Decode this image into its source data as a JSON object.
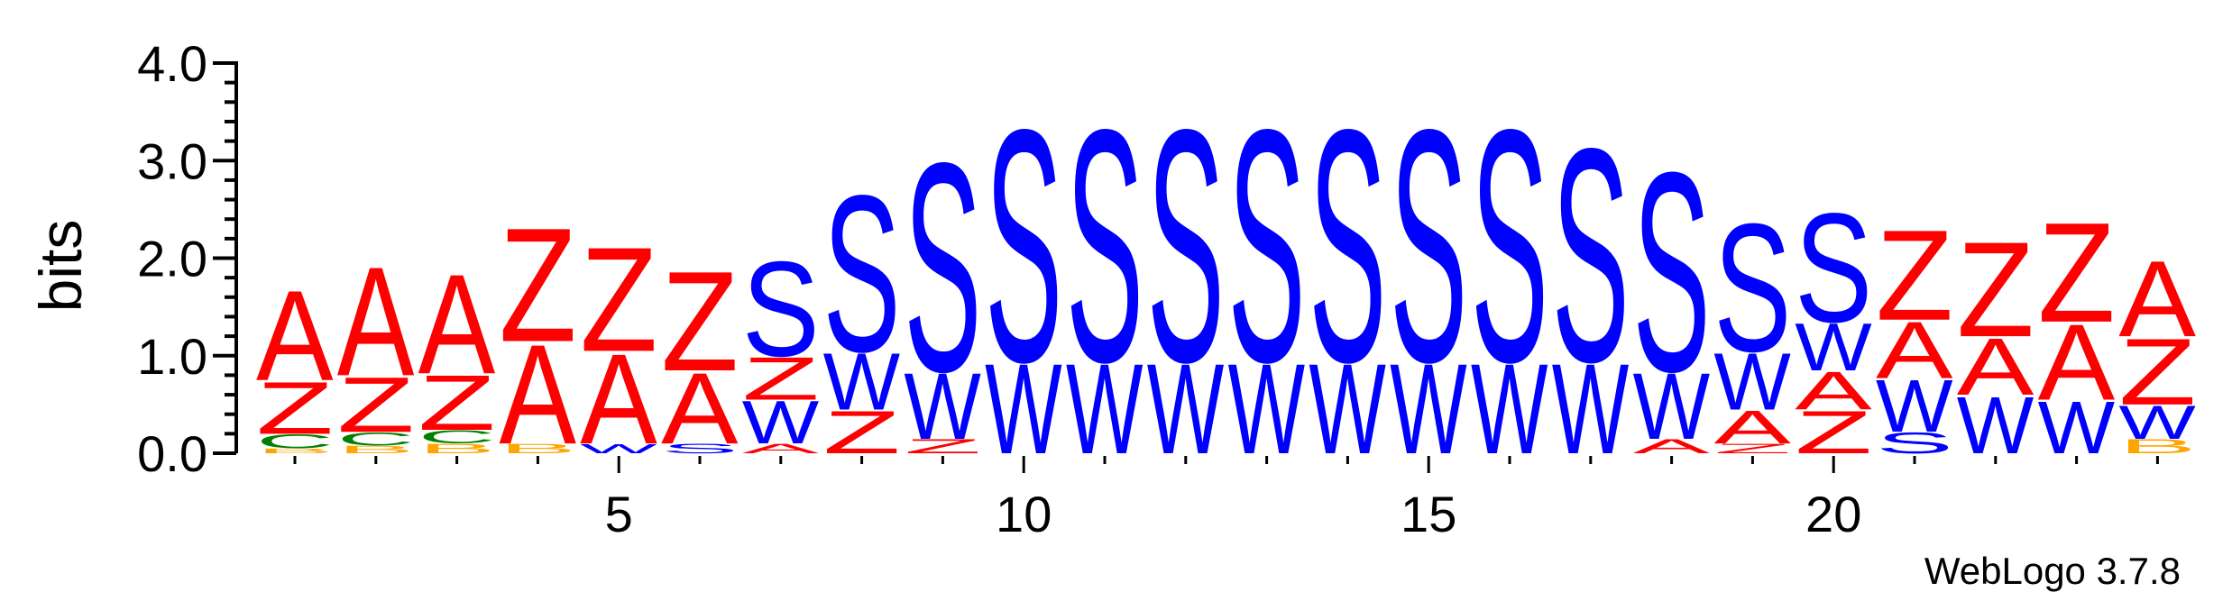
{
  "chart_data": {
    "type": "sequence-logo",
    "ylabel": "bits",
    "ylim": [
      0,
      4.0
    ],
    "y_ticks": [
      "0.0",
      "1.0",
      "2.0",
      "3.0",
      "4.0"
    ],
    "x_ticks": [
      "5",
      "10",
      "15",
      "20"
    ],
    "x_tick_positions": [
      5,
      10,
      15,
      20
    ],
    "positions": 24,
    "credit": "WebLogo 3.7.8",
    "colors": {
      "A": "#ff0000",
      "Z": "#ff0000",
      "S": "#0000ff",
      "W": "#0000ff",
      "C": "#008000",
      "B": "#ffa500",
      "T": "#800080"
    },
    "stacks": [
      {
        "position": 1,
        "letters": [
          [
            "B",
            0.05
          ],
          [
            "C",
            0.15
          ],
          [
            "Z",
            0.55
          ],
          [
            "A",
            0.95
          ]
        ]
      },
      {
        "position": 2,
        "letters": [
          [
            "B",
            0.08
          ],
          [
            "C",
            0.14
          ],
          [
            "Z",
            0.58
          ],
          [
            "A",
            1.15
          ]
        ]
      },
      {
        "position": 3,
        "letters": [
          [
            "B",
            0.1
          ],
          [
            "C",
            0.14
          ],
          [
            "Z",
            0.58
          ],
          [
            "A",
            1.05
          ]
        ]
      },
      {
        "position": 4,
        "letters": [
          [
            "B",
            0.1
          ],
          [
            "A",
            1.05
          ],
          [
            "Z",
            1.2
          ]
        ]
      },
      {
        "position": 5,
        "letters": [
          [
            "W",
            0.1
          ],
          [
            "A",
            0.95
          ],
          [
            "Z",
            1.1
          ]
        ]
      },
      {
        "position": 6,
        "letters": [
          [
            "S",
            0.1
          ],
          [
            "A",
            0.75
          ],
          [
            "Z",
            1.05
          ]
        ]
      },
      {
        "position": 7,
        "letters": [
          [
            "A",
            0.1
          ],
          [
            "W",
            0.45
          ],
          [
            "Z",
            0.45
          ],
          [
            "S",
            1.0
          ]
        ]
      },
      {
        "position": 8,
        "letters": [
          [
            "Z",
            0.45
          ],
          [
            "W",
            0.6
          ],
          [
            "S",
            1.65
          ]
        ]
      },
      {
        "position": 9,
        "letters": [
          [
            "Z",
            0.15
          ],
          [
            "W",
            0.7
          ],
          [
            "S",
            2.2
          ]
        ]
      },
      {
        "position": 10,
        "letters": [
          [
            "W",
            0.95
          ],
          [
            "S",
            2.45
          ]
        ]
      },
      {
        "position": 11,
        "letters": [
          [
            "W",
            0.95
          ],
          [
            "S",
            2.45
          ]
        ]
      },
      {
        "position": 12,
        "letters": [
          [
            "W",
            0.95
          ],
          [
            "S",
            2.45
          ]
        ]
      },
      {
        "position": 13,
        "letters": [
          [
            "W",
            0.95
          ],
          [
            "S",
            2.45
          ]
        ]
      },
      {
        "position": 14,
        "letters": [
          [
            "W",
            0.95
          ],
          [
            "S",
            2.45
          ]
        ]
      },
      {
        "position": 15,
        "letters": [
          [
            "W",
            0.95
          ],
          [
            "S",
            2.45
          ]
        ]
      },
      {
        "position": 16,
        "letters": [
          [
            "W",
            0.95
          ],
          [
            "S",
            2.45
          ]
        ]
      },
      {
        "position": 17,
        "letters": [
          [
            "W",
            0.95
          ],
          [
            "S",
            2.25
          ]
        ]
      },
      {
        "position": 18,
        "letters": [
          [
            "A",
            0.15
          ],
          [
            "W",
            0.7
          ],
          [
            "S",
            2.1
          ]
        ]
      },
      {
        "position": 19,
        "letters": [
          [
            "Z",
            0.1
          ],
          [
            "A",
            0.35
          ],
          [
            "W",
            0.6
          ],
          [
            "S",
            1.35
          ]
        ]
      },
      {
        "position": 20,
        "letters": [
          [
            "Z",
            0.45
          ],
          [
            "A",
            0.4
          ],
          [
            "W",
            0.5
          ],
          [
            "S",
            1.15
          ]
        ]
      },
      {
        "position": 21,
        "letters": [
          [
            "S",
            0.22
          ],
          [
            "W",
            0.55
          ],
          [
            "A",
            0.6
          ],
          [
            "Z",
            0.95
          ]
        ]
      },
      {
        "position": 22,
        "letters": [
          [
            "W",
            0.6
          ],
          [
            "A",
            0.6
          ],
          [
            "Z",
            1.0
          ]
        ]
      },
      {
        "position": 23,
        "letters": [
          [
            "W",
            0.55
          ],
          [
            "A",
            0.8
          ],
          [
            "Z",
            1.05
          ]
        ]
      },
      {
        "position": 24,
        "letters": [
          [
            "B",
            0.15
          ],
          [
            "W",
            0.35
          ],
          [
            "Z",
            0.7
          ],
          [
            "A",
            0.8
          ]
        ]
      }
    ]
  }
}
